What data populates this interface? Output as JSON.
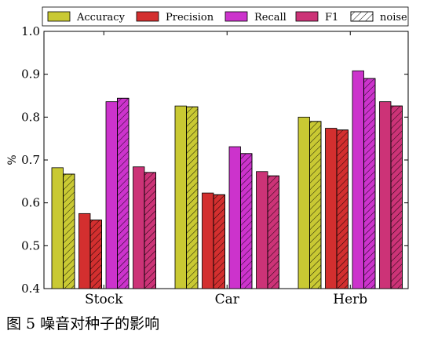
{
  "caption": "图 5 噪音对种子的影响",
  "chart_data": {
    "type": "bar",
    "categories": [
      "Stock",
      "Car",
      "Herb"
    ],
    "ylabel": "%",
    "ylim": [
      0.4,
      1.0
    ],
    "yticks": [
      "0.4",
      "0.5",
      "0.6",
      "0.7",
      "0.8",
      "0.9",
      "1.0"
    ],
    "legend_position": "top",
    "legend": [
      {
        "name": "Accuracy",
        "color": "#c9c933",
        "hatch": false
      },
      {
        "name": "Precision",
        "color": "#d32f2f",
        "hatch": false
      },
      {
        "name": "Recall",
        "color": "#cc33cc",
        "hatch": false
      },
      {
        "name": "F1",
        "color": "#cc3377",
        "hatch": false
      },
      {
        "name": "noise",
        "color": "#ffffff",
        "hatch": true
      }
    ],
    "series": [
      {
        "name": "Accuracy",
        "color": "#c9c933",
        "values": [
          0.682,
          0.826,
          0.8
        ]
      },
      {
        "name": "Accuracy (noise)",
        "color": "#c9c933",
        "hatch": true,
        "values": [
          0.667,
          0.824,
          0.79
        ]
      },
      {
        "name": "Precision",
        "color": "#d32f2f",
        "values": [
          0.575,
          0.623,
          0.774
        ]
      },
      {
        "name": "Precision (noise)",
        "color": "#d32f2f",
        "hatch": true,
        "values": [
          0.56,
          0.619,
          0.77
        ]
      },
      {
        "name": "Recall",
        "color": "#cc33cc",
        "values": [
          0.836,
          0.731,
          0.908
        ]
      },
      {
        "name": "Recall (noise)",
        "color": "#cc33cc",
        "hatch": true,
        "values": [
          0.844,
          0.715,
          0.89
        ]
      },
      {
        "name": "F1",
        "color": "#cc3377",
        "values": [
          0.684,
          0.673,
          0.836
        ]
      },
      {
        "name": "F1 (noise)",
        "color": "#cc3377",
        "hatch": true,
        "values": [
          0.671,
          0.663,
          0.826
        ]
      }
    ]
  }
}
